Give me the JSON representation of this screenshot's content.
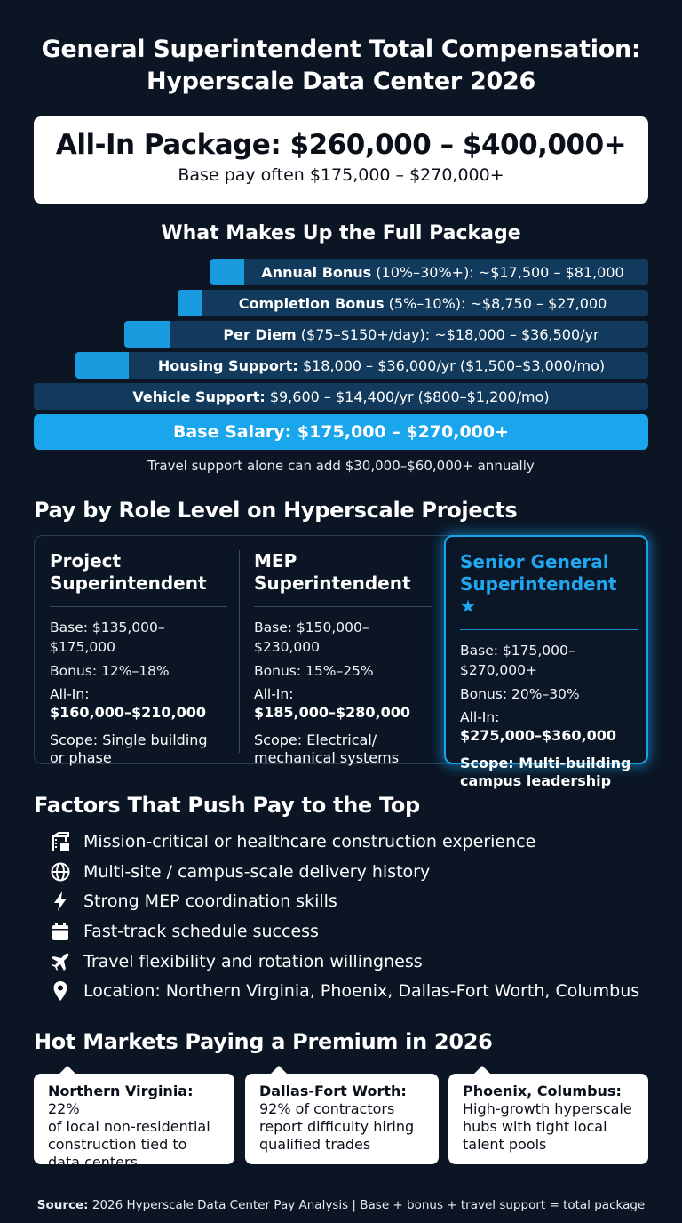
{
  "title": {
    "line1": "General Superintendent Total Compensation:",
    "line2": "Hyperscale Data Center 2026"
  },
  "package": {
    "headline": "All-In Package: $260,000 – $400,000+",
    "base_note": "Base pay often $175,000 – $270,000+"
  },
  "components": {
    "heading": "What Makes Up the Full Package",
    "bars": [
      {
        "label": "Annual Bonus",
        "detail": " (10%–30%+): ~$17,500 – $81,000"
      },
      {
        "label": "Completion Bonus",
        "detail": " (5%–10%): ~$8,750 – $27,000"
      },
      {
        "label": "Per Diem",
        "detail": " ($75–$150+/day): ~$18,000 – $36,500/yr"
      },
      {
        "label": "Housing Support:",
        "detail": " $18,000 – $36,000/yr ($1,500–$3,000/mo)"
      },
      {
        "label": "Vehicle Support:",
        "detail": " $9,600 – $14,400/yr ($800–$1,200/mo)"
      }
    ],
    "base": "Base Salary: $175,000 – $270,000+",
    "travel_note": "Travel support alone can add $30,000–$60,000+ annually"
  },
  "roles": {
    "heading": "Pay by Role Level on Hyperscale Projects",
    "items": [
      {
        "title1": "Project",
        "title2": "Superintendent",
        "base": "Base: $135,000–$175,000",
        "bonus": "Bonus: 12%–18%",
        "allin_label": "All-In:",
        "allin": "$160,000–$210,000",
        "scope1": "Scope: Single building",
        "scope2": "or phase"
      },
      {
        "title1": "MEP",
        "title2": "Superintendent",
        "base": "Base: $150,000–$230,000",
        "bonus": "Bonus: 15%–25%",
        "allin_label": "All-In:",
        "allin": "$185,000–$280,000",
        "scope1": "Scope: Electrical/",
        "scope2": "mechanical systems"
      },
      {
        "title1": "Senior General",
        "title2": "Superintendent",
        "star": "★",
        "base": "Base: $175,000–$270,000+",
        "bonus": "Bonus: 20%–30%",
        "allin_label": "All-In:",
        "allin": "$275,000–$360,000",
        "scope1": "Scope: Multi-building",
        "scope2": "campus leadership"
      }
    ]
  },
  "factors": {
    "heading": "Factors That Push Pay to the Top",
    "items": [
      {
        "icon": "crane-icon",
        "text": "Mission-critical or healthcare construction experience"
      },
      {
        "icon": "globe-icon",
        "text": "Multi-site / campus-scale delivery history"
      },
      {
        "icon": "lightning-icon",
        "text": "Strong MEP coordination skills"
      },
      {
        "icon": "calendar-icon",
        "text": "Fast-track schedule success"
      },
      {
        "icon": "airplane-icon",
        "text": "Travel flexibility and rotation willingness"
      },
      {
        "icon": "location-pin-icon",
        "text": "Location: Northern Virginia, Phoenix, Dallas-Fort Worth, Columbus"
      }
    ]
  },
  "markets": {
    "heading": "Hot Markets Paying a Premium in 2026",
    "items": [
      {
        "name": "Northern Virginia:",
        "lines": [
          " 22%",
          "of local non-residential",
          "construction tied to",
          "data centers"
        ]
      },
      {
        "name": "Dallas-Fort Worth:",
        "lines": [
          "",
          "92% of contractors",
          "report difficulty hiring",
          "qualified trades"
        ]
      },
      {
        "name": "Phoenix, Columbus:",
        "lines": [
          "",
          "High-growth hyperscale",
          "hubs with tight local",
          "talent pools"
        ]
      }
    ]
  },
  "footer": {
    "label": "Source:",
    "text": " 2026 Hyperscale Data Center Pay Analysis | Base + bonus + travel support = total package"
  },
  "colors": {
    "background": "#0b1524",
    "accent": "#1aa6ec",
    "bar": "#123a5c"
  }
}
